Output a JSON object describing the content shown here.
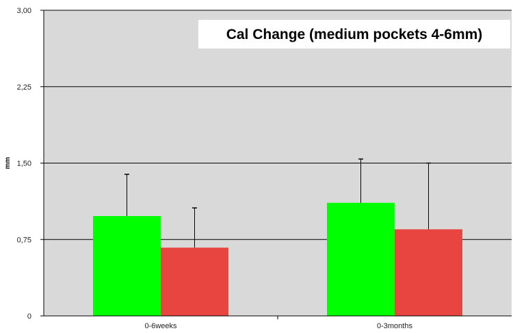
{
  "chart_data": {
    "type": "bar",
    "title": "Cal Change (medium pockets 4-6mm)",
    "xlabel": "",
    "ylabel": "mm",
    "ylim": [
      0,
      3.0
    ],
    "yticks": [
      0,
      0.75,
      1.5,
      2.25,
      3.0
    ],
    "ytick_labels": [
      "0",
      "0,75",
      "1,50",
      "2,25",
      "3,00"
    ],
    "categories": [
      "0-6weeks",
      "0-3months"
    ],
    "grid": true,
    "legend": "none",
    "series": [
      {
        "color": "#00ff00",
        "values": [
          0.98,
          1.11
        ],
        "error_upper": [
          1.39,
          1.54
        ]
      },
      {
        "color": "#e84540",
        "values": [
          0.67,
          0.85
        ],
        "error_upper": [
          1.06,
          1.5
        ]
      }
    ]
  }
}
